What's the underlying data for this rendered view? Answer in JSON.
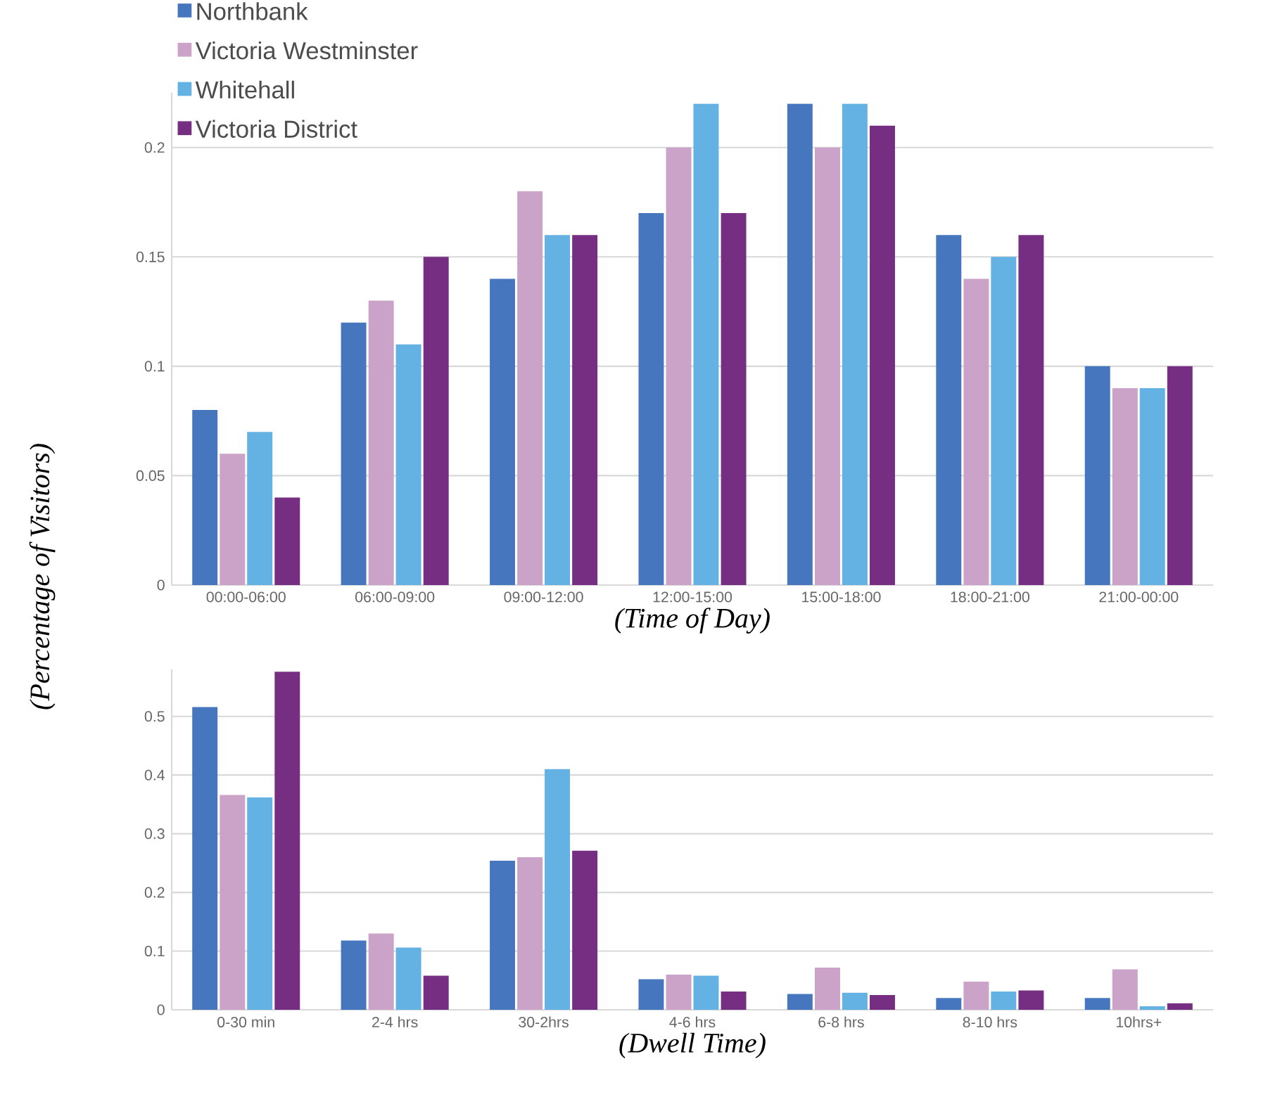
{
  "chart_data": [
    {
      "type": "bar",
      "xlabel": "(Time of Day)",
      "ylabel": "(Percentage of Visitors)",
      "categories": [
        "00:00-06:00",
        "06:00-09:00",
        "09:00-12:00",
        "12:00-15:00",
        "15:00-18:00",
        "18:00-21:00",
        "21:00-00:00"
      ],
      "series": [
        {
          "name": "Northbank",
          "color": "#4677be",
          "values": [
            0.08,
            0.12,
            0.14,
            0.17,
            0.22,
            0.16,
            0.1
          ]
        },
        {
          "name": "Victoria Westminster",
          "color": "#cba2c8",
          "values": [
            0.06,
            0.13,
            0.18,
            0.2,
            0.2,
            0.14,
            0.09
          ]
        },
        {
          "name": "Whitehall",
          "color": "#64b1e4",
          "values": [
            0.07,
            0.11,
            0.16,
            0.22,
            0.22,
            0.15,
            0.09
          ]
        },
        {
          "name": "Victoria District",
          "color": "#762e83",
          "values": [
            0.04,
            0.15,
            0.16,
            0.17,
            0.21,
            0.16,
            0.1
          ]
        }
      ],
      "ylim": [
        0,
        0.225
      ],
      "yticks": [
        0,
        0.05,
        0.1,
        0.15,
        0.2
      ],
      "grid": "y",
      "legend": "top left"
    },
    {
      "type": "bar",
      "xlabel": "(Dwell Time)",
      "categories": [
        "0-30 min",
        "2-4 hrs",
        "30-2hrs",
        "4-6 hrs",
        "6-8 hrs",
        "8-10 hrs",
        "10hrs+"
      ],
      "series": [
        {
          "color": "#4677be",
          "values": [
            0.516,
            0.118,
            0.254,
            0.052,
            0.027,
            0.02,
            0.02
          ]
        },
        {
          "color": "#cba2c8",
          "values": [
            0.366,
            0.13,
            0.26,
            0.06,
            0.072,
            0.048,
            0.069
          ]
        },
        {
          "color": "#64b1e4",
          "values": [
            0.362,
            0.106,
            0.41,
            0.058,
            0.029,
            0.031,
            0.006
          ]
        },
        {
          "color": "#762e83",
          "values": [
            0.576,
            0.058,
            0.271,
            0.031,
            0.025,
            0.033,
            0.011
          ]
        }
      ],
      "ylim": [
        0,
        0.58
      ],
      "yticks": [
        0,
        0.1,
        0.2,
        0.3,
        0.4,
        0.5
      ],
      "grid": "y"
    }
  ]
}
